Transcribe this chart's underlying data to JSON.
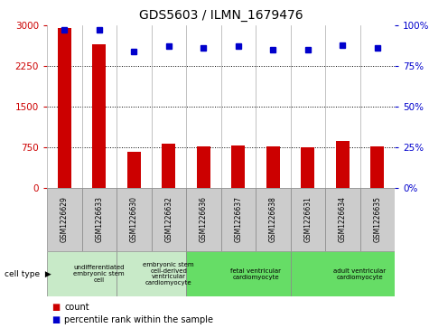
{
  "title": "GDS5603 / ILMN_1679476",
  "samples": [
    "GSM1226629",
    "GSM1226633",
    "GSM1226630",
    "GSM1226632",
    "GSM1226636",
    "GSM1226637",
    "GSM1226638",
    "GSM1226631",
    "GSM1226634",
    "GSM1226635"
  ],
  "counts": [
    2950,
    2650,
    660,
    820,
    770,
    790,
    760,
    750,
    860,
    760
  ],
  "percentiles": [
    97,
    97,
    84,
    87,
    86,
    87,
    85,
    85,
    88,
    86
  ],
  "ylim_left": [
    0,
    3000
  ],
  "ylim_right": [
    0,
    100
  ],
  "yticks_left": [
    0,
    750,
    1500,
    2250,
    3000
  ],
  "yticks_right": [
    0,
    25,
    50,
    75,
    100
  ],
  "cell_types": [
    {
      "label": "undifferentiated\nembryonic stem\ncell",
      "start": 0,
      "end": 2,
      "color": "#c8eac8"
    },
    {
      "label": "embryonic stem\ncell-derived\nventricular\ncardiomyocyte",
      "start": 2,
      "end": 4,
      "color": "#c8eac8"
    },
    {
      "label": "fetal ventricular\ncardiomyocyte",
      "start": 4,
      "end": 7,
      "color": "#66dd66"
    },
    {
      "label": "adult ventricular\ncardiomyocyte",
      "start": 7,
      "end": 10,
      "color": "#66dd66"
    }
  ],
  "bar_color": "#cc0000",
  "dot_color": "#0000cc",
  "tick_color_left": "#cc0000",
  "tick_color_right": "#0000cc",
  "sample_bg_color": "#cccccc",
  "legend_count_color": "#cc0000",
  "legend_pct_color": "#0000cc",
  "fig_width": 4.75,
  "fig_height": 3.63,
  "dpi": 100
}
